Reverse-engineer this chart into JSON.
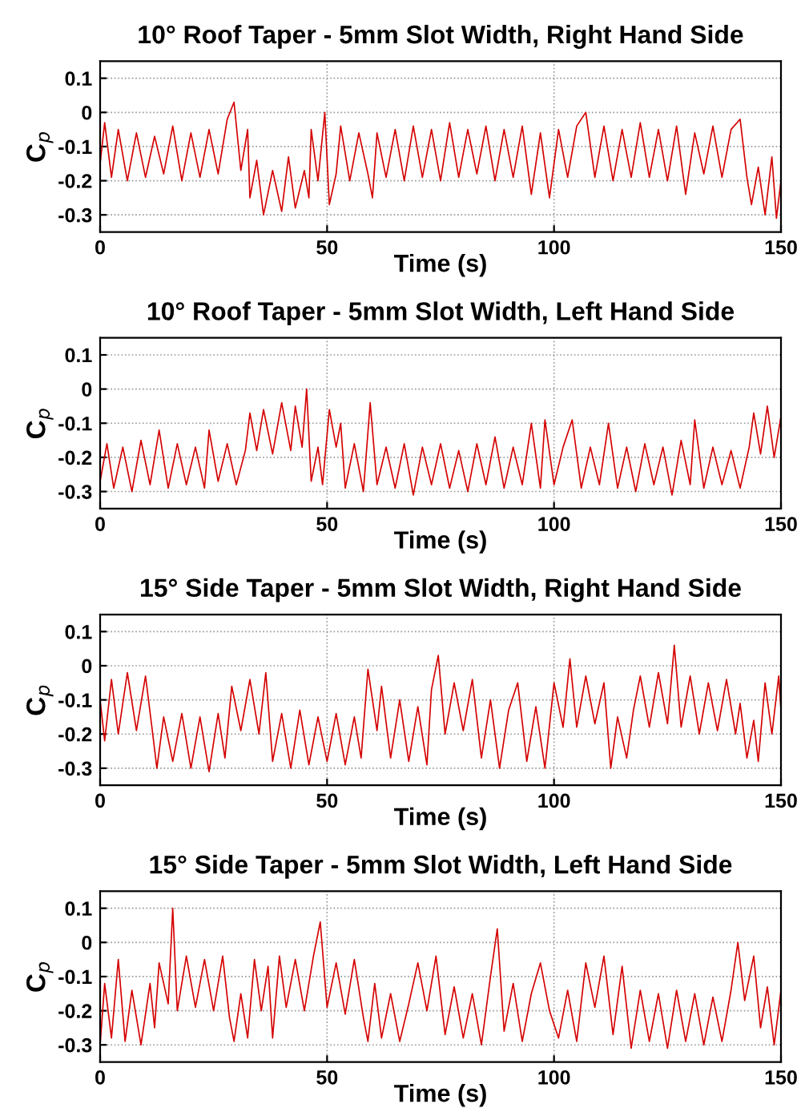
{
  "chart_data": [
    {
      "type": "line",
      "title": "10° Roof Taper - 5mm Slot Width, Right Hand Side",
      "xlabel": "Time (s)",
      "ylabel": "C$_{p}$",
      "xlim": [
        0,
        150
      ],
      "ylim": [
        -0.35,
        0.15
      ],
      "xticks": [
        0,
        50,
        100,
        150
      ],
      "yticks": [
        -0.3,
        -0.2,
        -0.1,
        0,
        0.1
      ],
      "grid": true,
      "series": [
        {
          "color": "#d40000",
          "x": [
            0,
            1,
            2.5,
            4,
            6,
            8,
            10,
            12,
            14,
            16,
            18,
            20,
            22,
            24,
            26,
            28,
            29.5,
            31,
            32.5,
            33,
            34.5,
            36,
            38,
            40,
            41.5,
            43,
            45,
            46,
            46.5,
            48,
            49.5,
            50.5,
            52,
            53,
            55,
            57,
            59,
            60,
            61,
            63,
            65,
            67,
            69,
            71,
            73,
            75,
            77,
            79,
            81,
            83,
            85,
            87,
            89,
            91,
            93,
            95,
            97,
            99,
            101,
            103,
            105,
            107,
            109,
            111,
            113,
            115,
            117,
            119,
            121,
            123,
            125,
            127,
            129,
            131,
            133,
            135,
            137,
            139,
            141,
            142.5,
            143.5,
            145,
            146.5,
            148,
            149,
            150
          ],
          "values": [
            -0.15,
            -0.03,
            -0.19,
            -0.05,
            -0.2,
            -0.06,
            -0.19,
            -0.07,
            -0.18,
            -0.04,
            -0.2,
            -0.06,
            -0.19,
            -0.05,
            -0.18,
            -0.02,
            0.03,
            -0.17,
            -0.05,
            -0.25,
            -0.14,
            -0.3,
            -0.17,
            -0.29,
            -0.13,
            -0.28,
            -0.17,
            -0.25,
            -0.05,
            -0.2,
            0.0,
            -0.27,
            -0.18,
            -0.04,
            -0.2,
            -0.06,
            -0.18,
            -0.25,
            -0.06,
            -0.19,
            -0.05,
            -0.2,
            -0.04,
            -0.19,
            -0.05,
            -0.2,
            -0.03,
            -0.19,
            -0.05,
            -0.18,
            -0.04,
            -0.2,
            -0.05,
            -0.19,
            -0.04,
            -0.24,
            -0.06,
            -0.25,
            -0.05,
            -0.19,
            -0.04,
            0.0,
            -0.19,
            -0.04,
            -0.2,
            -0.05,
            -0.19,
            -0.03,
            -0.19,
            -0.05,
            -0.2,
            -0.04,
            -0.24,
            -0.06,
            -0.18,
            -0.04,
            -0.19,
            -0.05,
            -0.02,
            -0.19,
            -0.27,
            -0.16,
            -0.3,
            -0.13,
            -0.31,
            -0.2
          ]
        }
      ]
    },
    {
      "type": "line",
      "title": "10° Roof Taper - 5mm Slot Width, Left Hand Side",
      "xlabel": "Time (s)",
      "ylabel": "C$_{p}$",
      "xlim": [
        0,
        150
      ],
      "ylim": [
        -0.35,
        0.15
      ],
      "xticks": [
        0,
        50,
        100,
        150
      ],
      "yticks": [
        -0.3,
        -0.2,
        -0.1,
        0,
        0.1
      ],
      "grid": true,
      "series": [
        {
          "color": "#d40000",
          "x": [
            0,
            1.5,
            3,
            5,
            7,
            9,
            11,
            13,
            15,
            17,
            19,
            21,
            23,
            24,
            26,
            28,
            30,
            32,
            33,
            34.5,
            36,
            38,
            40,
            42,
            43,
            44.5,
            45.5,
            46.5,
            48,
            49,
            50.5,
            52,
            53,
            54,
            56,
            58,
            59.5,
            61,
            63,
            65,
            67,
            69,
            71,
            73,
            75,
            77,
            79,
            81,
            83,
            85,
            87,
            89,
            91,
            93,
            95,
            97,
            98,
            100,
            102,
            104,
            106,
            108,
            110,
            112,
            114,
            116,
            118,
            120,
            122,
            124,
            126,
            128,
            130,
            131,
            133,
            135,
            137,
            139,
            141,
            143,
            144,
            145.5,
            147,
            148.5,
            150
          ],
          "values": [
            -0.27,
            -0.16,
            -0.29,
            -0.17,
            -0.3,
            -0.15,
            -0.28,
            -0.12,
            -0.29,
            -0.16,
            -0.28,
            -0.17,
            -0.29,
            -0.12,
            -0.27,
            -0.16,
            -0.28,
            -0.18,
            -0.07,
            -0.18,
            -0.06,
            -0.19,
            -0.04,
            -0.18,
            -0.05,
            -0.17,
            0.0,
            -0.27,
            -0.17,
            -0.28,
            -0.06,
            -0.17,
            -0.1,
            -0.29,
            -0.16,
            -0.3,
            -0.04,
            -0.28,
            -0.17,
            -0.29,
            -0.16,
            -0.31,
            -0.17,
            -0.28,
            -0.16,
            -0.29,
            -0.18,
            -0.3,
            -0.16,
            -0.28,
            -0.14,
            -0.29,
            -0.17,
            -0.28,
            -0.1,
            -0.29,
            -0.09,
            -0.28,
            -0.17,
            -0.09,
            -0.29,
            -0.17,
            -0.28,
            -0.1,
            -0.29,
            -0.17,
            -0.3,
            -0.16,
            -0.28,
            -0.17,
            -0.31,
            -0.15,
            -0.28,
            -0.09,
            -0.29,
            -0.17,
            -0.28,
            -0.18,
            -0.29,
            -0.17,
            -0.07,
            -0.19,
            -0.05,
            -0.2,
            -0.08
          ]
        }
      ]
    },
    {
      "type": "line",
      "title": "15° Side Taper - 5mm Slot Width, Right Hand Side",
      "xlabel": "Time (s)",
      "ylabel": "C$_{p}$",
      "xlim": [
        0,
        150
      ],
      "ylim": [
        -0.35,
        0.15
      ],
      "xticks": [
        0,
        50,
        100,
        150
      ],
      "yticks": [
        -0.3,
        -0.2,
        -0.1,
        0,
        0.1
      ],
      "grid": true,
      "series": [
        {
          "color": "#d40000",
          "x": [
            0,
            1,
            2.5,
            4,
            6,
            8,
            10,
            11.5,
            12.5,
            14,
            16,
            18,
            20,
            22,
            24,
            26,
            27.5,
            29,
            31,
            33,
            35,
            36.5,
            38,
            40,
            42,
            44,
            46,
            48,
            50,
            52,
            54,
            56,
            57.5,
            59,
            61,
            62,
            64,
            66,
            68,
            70,
            72,
            73,
            74.5,
            76,
            78,
            80,
            82,
            84,
            86,
            88,
            90,
            92,
            94,
            96,
            98,
            100,
            102,
            103.5,
            105,
            107,
            109,
            111,
            112.5,
            114,
            116,
            117.5,
            119,
            121,
            123,
            125,
            126.5,
            128,
            130,
            132,
            134,
            136,
            138,
            140,
            141,
            142.5,
            144,
            145,
            146.5,
            148,
            149.5,
            150
          ],
          "values": [
            -0.1,
            -0.22,
            -0.04,
            -0.2,
            -0.02,
            -0.19,
            -0.03,
            -0.19,
            -0.3,
            -0.15,
            -0.28,
            -0.14,
            -0.3,
            -0.15,
            -0.31,
            -0.14,
            -0.27,
            -0.06,
            -0.19,
            -0.04,
            -0.2,
            -0.02,
            -0.28,
            -0.14,
            -0.3,
            -0.13,
            -0.29,
            -0.15,
            -0.28,
            -0.14,
            -0.29,
            -0.15,
            -0.27,
            -0.01,
            -0.19,
            -0.06,
            -0.27,
            -0.1,
            -0.28,
            -0.12,
            -0.29,
            -0.07,
            0.03,
            -0.2,
            -0.05,
            -0.19,
            -0.04,
            -0.27,
            -0.1,
            -0.3,
            -0.13,
            -0.05,
            -0.28,
            -0.12,
            -0.3,
            -0.05,
            -0.18,
            0.02,
            -0.18,
            -0.03,
            -0.17,
            -0.05,
            -0.3,
            -0.15,
            -0.27,
            -0.13,
            -0.03,
            -0.18,
            -0.02,
            -0.17,
            0.06,
            -0.18,
            -0.03,
            -0.2,
            -0.05,
            -0.19,
            -0.04,
            -0.2,
            -0.11,
            -0.27,
            -0.16,
            -0.28,
            -0.05,
            -0.2,
            -0.03,
            -0.13
          ]
        }
      ]
    },
    {
      "type": "line",
      "title": "15° Side Taper - 5mm Slot Width, Left Hand Side",
      "xlabel": "Time (s)",
      "ylabel": "C$_{p}$",
      "xlim": [
        0,
        150
      ],
      "ylim": [
        -0.35,
        0.15
      ],
      "xticks": [
        0,
        50,
        100,
        150
      ],
      "yticks": [
        -0.3,
        -0.2,
        -0.1,
        0,
        0.1
      ],
      "grid": true,
      "series": [
        {
          "color": "#d40000",
          "x": [
            0,
            1,
            2.5,
            4,
            5.5,
            7,
            9,
            11,
            12,
            13,
            15,
            16,
            17,
            19,
            21,
            23,
            25,
            27,
            28.5,
            29.5,
            31,
            32.5,
            34,
            35.5,
            37,
            38,
            39.5,
            41,
            43,
            45,
            47,
            48.5,
            50,
            52,
            54,
            56,
            58,
            59,
            60.5,
            62,
            64,
            66,
            68,
            70,
            72,
            74,
            76,
            78,
            80,
            82,
            84,
            86,
            87.5,
            89,
            91,
            93,
            95,
            97,
            99,
            101,
            103,
            105,
            107,
            109,
            111,
            113,
            115,
            117,
            119,
            121,
            123,
            125,
            127,
            129,
            131,
            133,
            135,
            137,
            139,
            140.5,
            142,
            144,
            145.5,
            147,
            148.5,
            150
          ],
          "values": [
            -0.3,
            -0.12,
            -0.28,
            -0.05,
            -0.29,
            -0.14,
            -0.3,
            -0.12,
            -0.25,
            -0.06,
            -0.18,
            0.1,
            -0.2,
            -0.04,
            -0.19,
            -0.05,
            -0.2,
            -0.04,
            -0.22,
            -0.29,
            -0.15,
            -0.28,
            -0.05,
            -0.2,
            -0.07,
            -0.28,
            -0.04,
            -0.19,
            -0.05,
            -0.2,
            -0.04,
            0.06,
            -0.19,
            -0.06,
            -0.21,
            -0.05,
            -0.22,
            -0.29,
            -0.12,
            -0.28,
            -0.15,
            -0.29,
            -0.18,
            -0.06,
            -0.2,
            -0.04,
            -0.27,
            -0.13,
            -0.28,
            -0.15,
            -0.3,
            -0.1,
            0.04,
            -0.26,
            -0.12,
            -0.29,
            -0.15,
            -0.06,
            -0.2,
            -0.28,
            -0.14,
            -0.29,
            -0.06,
            -0.19,
            -0.04,
            -0.27,
            -0.07,
            -0.31,
            -0.14,
            -0.29,
            -0.15,
            -0.31,
            -0.14,
            -0.29,
            -0.15,
            -0.3,
            -0.16,
            -0.29,
            -0.14,
            0.0,
            -0.17,
            -0.04,
            -0.25,
            -0.13,
            -0.3,
            -0.14
          ]
        }
      ]
    }
  ]
}
